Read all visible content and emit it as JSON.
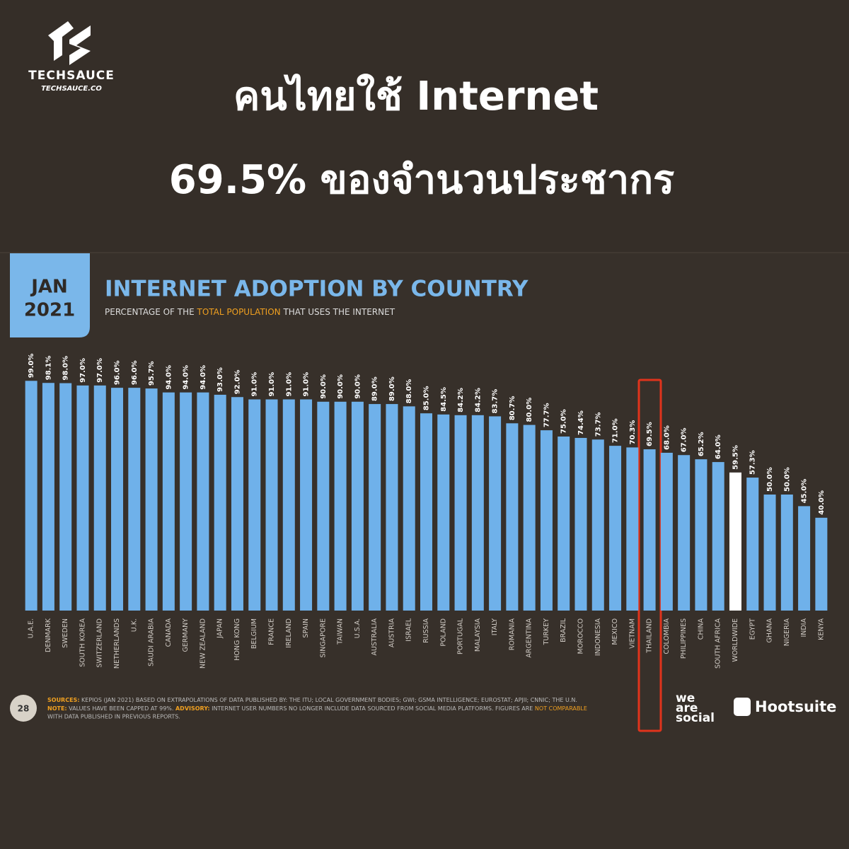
{
  "header": {
    "logo": "TECHSAUCE",
    "logo_url": "TECHSAUCE.CO",
    "headline_1": "คนไทยใช้ Internet",
    "headline_2": "69.5% ของจำนวนประชากร"
  },
  "badge": {
    "month": "JAN",
    "year": "2021"
  },
  "chart_data": {
    "type": "bar",
    "title": "INTERNET ADOPTION BY COUNTRY",
    "subtitle": [
      "PERCENTAGE OF THE ",
      "TOTAL POPULATION",
      " THAT USES THE INTERNET"
    ],
    "categories": [
      "U.A.E.",
      "DENMARK",
      "SWEDEN",
      "SOUTH KOREA",
      "SWITZERLAND",
      "NETHERLANDS",
      "U.K.",
      "SAUDI ARABIA",
      "CANADA",
      "GERMANY",
      "NEW ZEALAND",
      "JAPAN",
      "HONG KONG",
      "BELGIUM",
      "FRANCE",
      "IRELAND",
      "SPAIN",
      "SINGAPORE",
      "TAIWAN",
      "U.S.A.",
      "AUSTRALIA",
      "AUSTRIA",
      "ISRAEL",
      "RUSSIA",
      "POLAND",
      "PORTUGAL",
      "MALAYSIA",
      "ITALY",
      "ROMANIA",
      "ARGENTINA",
      "TURKEY",
      "BRAZIL",
      "MOROCCO",
      "INDONESIA",
      "MEXICO",
      "VIETNAM",
      "THAILAND",
      "COLOMBIA",
      "PHILIPPINES",
      "CHINA",
      "SOUTH AFRICA",
      "WORLDWIDE",
      "EGYPT",
      "GHANA",
      "NIGERIA",
      "INDIA",
      "KENYA"
    ],
    "values": [
      99.0,
      98.1,
      98.0,
      97.0,
      97.0,
      96.0,
      96.0,
      95.7,
      94.0,
      94.0,
      94.0,
      93.0,
      92.0,
      91.0,
      91.0,
      91.0,
      91.0,
      90.0,
      90.0,
      90.0,
      89.0,
      89.0,
      88.0,
      85.0,
      84.5,
      84.2,
      84.2,
      83.7,
      80.7,
      80.0,
      77.7,
      75.0,
      74.4,
      73.7,
      71.0,
      70.3,
      69.5,
      68.0,
      67.0,
      65.2,
      64.0,
      59.5,
      57.3,
      50.0,
      50.0,
      45.0,
      40.0
    ],
    "value_labels": [
      "99.0%",
      "98.1%",
      "98.0%",
      "97.0%",
      "97.0%",
      "96.0%",
      "96.0%",
      "95.7%",
      "94.0%",
      "94.0%",
      "94.0%",
      "93.0%",
      "92.0%",
      "91.0%",
      "91.0%",
      "91.0%",
      "91.0%",
      "90.0%",
      "90.0%",
      "90.0%",
      "89.0%",
      "89.0%",
      "88.0%",
      "85.0%",
      "84.5%",
      "84.2%",
      "84.2%",
      "83.7%",
      "80.7%",
      "80.0%",
      "77.7%",
      "75.0%",
      "74.4%",
      "73.7%",
      "71.0%",
      "70.3%",
      "69.5%",
      "68.0%",
      "67.0%",
      "65.2%",
      "64.0%",
      "59.5%",
      "57.3%",
      "50.0%",
      "50.0%",
      "45.0%",
      "40.0%"
    ],
    "colors": [
      "#6fb1ea",
      "#6fb1ea",
      "#6fb1ea",
      "#6fb1ea",
      "#6fb1ea",
      "#6fb1ea",
      "#6fb1ea",
      "#6fb1ea",
      "#6fb1ea",
      "#6fb1ea",
      "#6fb1ea",
      "#6fb1ea",
      "#6fb1ea",
      "#6fb1ea",
      "#6fb1ea",
      "#6fb1ea",
      "#6fb1ea",
      "#6fb1ea",
      "#6fb1ea",
      "#6fb1ea",
      "#6fb1ea",
      "#6fb1ea",
      "#6fb1ea",
      "#6fb1ea",
      "#6fb1ea",
      "#6fb1ea",
      "#6fb1ea",
      "#6fb1ea",
      "#6fb1ea",
      "#6fb1ea",
      "#6fb1ea",
      "#6fb1ea",
      "#6fb1ea",
      "#6fb1ea",
      "#6fb1ea",
      "#6fb1ea",
      "#6fb1ea",
      "#6fb1ea",
      "#6fb1ea",
      "#6fb1ea",
      "#6fb1ea",
      "#ffffff",
      "#6fb1ea",
      "#6fb1ea",
      "#6fb1ea",
      "#6fb1ea",
      "#6fb1ea"
    ],
    "ylim": [
      0,
      100
    ]
  },
  "footer": {
    "page": "28",
    "line_1": [
      "SOURCES:",
      " KEPIOS (JAN 2021) BASED ON EXTRAPOLATIONS OF DATA PUBLISHED BY: THE ITU; LOCAL GOVERNMENT BODIES; GWI; GSMA INTELLIGENCE; EUROSTAT; APJII; CNNIC; THE U.N."
    ],
    "line_2": [
      "NOTE:",
      " VALUES HAVE BEEN CAPPED AT 99%. ",
      "ADVISORY:",
      " INTERNET USER NUMBERS NO LONGER INCLUDE DATA SOURCED FROM SOCIAL MEDIA PLATFORMS. FIGURES ARE ",
      "NOT COMPARABLE"
    ],
    "line_3": "WITH DATA PUBLISHED IN PREVIOUS REPORTS.",
    "brand_1": [
      "we",
      "are",
      "social"
    ],
    "brand_2": "Hootsuite"
  }
}
